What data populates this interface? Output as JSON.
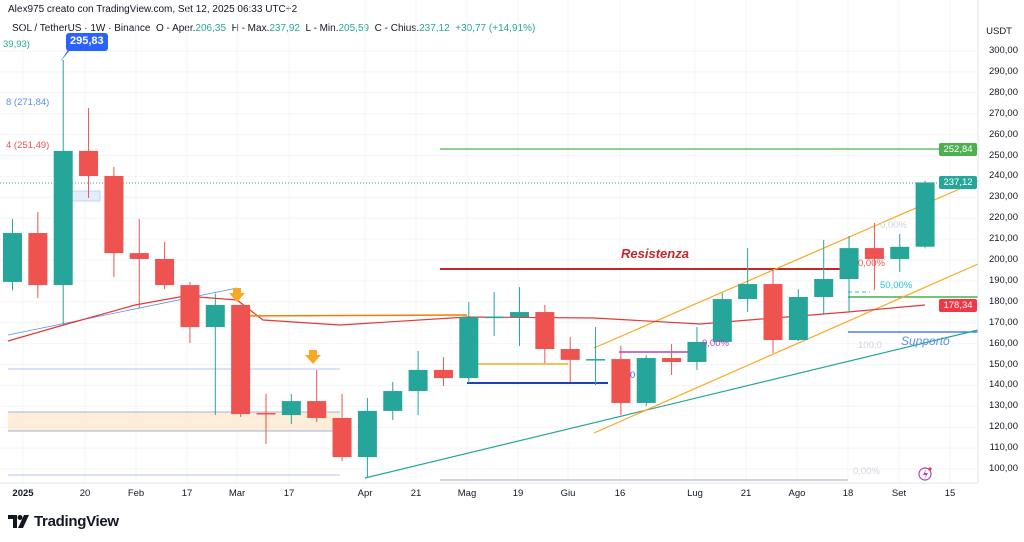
{
  "header": {
    "credit": "Alex975 creato con TradingView.com, Set 12, 2025 06:33 UTC+2",
    "symbol": "SOL / TetherUS · 1W · Binance",
    "open_label": "O - Aper.",
    "open": "206,35",
    "high_label": "H - Max.",
    "high": "237,92",
    "low_label": "L - Min.",
    "low": "205,59",
    "close_label": "C - Chius.",
    "close": "237,12",
    "change": "+30,77 (+14,91%)"
  },
  "price_axis": {
    "currency": "USDT",
    "ticks": [
      "300,00",
      "290,00",
      "280,00",
      "270,00",
      "260,00",
      "250,00",
      "240,00",
      "230,00",
      "220,00",
      "210,00",
      "200,00",
      "190,00",
      "180,00",
      "170,00",
      "160,00",
      "150,00",
      "140,00",
      "130,00",
      "120,00",
      "110,00",
      "100,00"
    ],
    "badges": [
      {
        "label": "252,84",
        "price": 252.84,
        "color": "#4caf50"
      },
      {
        "label": "237,12",
        "price": 237.12,
        "color": "#26a69a"
      },
      {
        "label": "178,34",
        "price": 178.34,
        "color": "#f23645"
      }
    ]
  },
  "time_axis": [
    "2025",
    "20",
    "Feb",
    "17",
    "Mar",
    "17",
    "Apr",
    "21",
    "Mag",
    "19",
    "Giu",
    "16",
    "Lug",
    "21",
    "Ago",
    "18",
    "Set",
    "15"
  ],
  "annotations": {
    "high_callout": "295,83",
    "fib_top": "39,93)",
    "fib_1": "8 (271,84)",
    "fib_2": "4 (251,49)",
    "resistance": "Resistenza",
    "support": "Supporto",
    "pct_0_a": "0,00%",
    "pct_0_red": "0,00%",
    "pct_50": "50,00%",
    "pct_100": "100,0",
    "pct_0_bottom": "0,00%",
    "pct_0_purple": "0,00%",
    "zero_blue": "0"
  },
  "colors": {
    "up": "#26a69a",
    "down": "#ef5350",
    "resistance": "#c62828",
    "support": "#2962ff",
    "channel": "#f9a825",
    "ma": "#e53935"
  },
  "candles": [
    [
      189.5,
      219.6,
      185.6,
      212.9
    ],
    [
      212.9,
      223,
      181.8,
      188.0
    ],
    [
      188.0,
      295.83,
      168.9,
      252.2
    ],
    [
      252.2,
      272.7,
      229.7,
      240.2
    ],
    [
      240.2,
      244.5,
      191.9,
      203.3
    ],
    [
      203.3,
      219.6,
      177,
      200.5
    ],
    [
      200.5,
      208.6,
      186,
      188.0
    ],
    [
      188.0,
      189.5,
      160.3,
      167.9
    ],
    [
      167.9,
      184,
      125.8,
      178.5
    ],
    [
      178.5,
      178.5,
      124.9,
      126.3
    ],
    [
      126.8,
      136,
      112,
      126.3
    ],
    [
      125.8,
      135.9,
      121.5,
      132.5
    ],
    [
      132.5,
      147.4,
      122.5,
      124.4
    ],
    [
      124.4,
      136,
      103.8,
      105.7
    ],
    [
      105.7,
      134,
      95.7,
      127.8
    ],
    [
      127.8,
      141.6,
      123.4,
      137.3
    ],
    [
      137.3,
      156.5,
      125.8,
      147.4
    ],
    [
      147.4,
      153.6,
      139.7,
      143.5
    ],
    [
      143.5,
      179.9,
      141.1,
      172.7
    ],
    [
      172.7,
      184.7,
      163.6,
      172.9
    ],
    [
      172.7,
      187,
      158.9,
      175.1
    ],
    [
      175.1,
      178.5,
      150.7,
      157.4
    ],
    [
      157.4,
      163.1,
      141.6,
      152.2
    ],
    [
      152.2,
      167.9,
      140.2,
      152.6
    ],
    [
      152.6,
      158.9,
      125.8,
      131.6
    ],
    [
      131.6,
      154.5,
      130.1,
      153.1
    ],
    [
      153.1,
      159.8,
      145,
      151.2
    ],
    [
      151.2,
      167.9,
      147.4,
      160.8
    ],
    [
      160.8,
      184.2,
      160.8,
      181.3
    ],
    [
      181.3,
      205.7,
      175.1,
      188.5
    ],
    [
      188.5,
      195.2,
      155.5,
      161.7
    ],
    [
      161.7,
      186,
      161.2,
      182.3
    ],
    [
      182.3,
      209.6,
      173.7,
      190.9
    ],
    [
      190.9,
      211.5,
      175.1,
      205.7
    ],
    [
      205.7,
      217.7,
      185.6,
      200.5
    ],
    [
      200.5,
      212.5,
      194.2,
      206.3
    ],
    [
      206.35,
      237.92,
      205.59,
      237.12
    ]
  ],
  "brand": "TradingView"
}
